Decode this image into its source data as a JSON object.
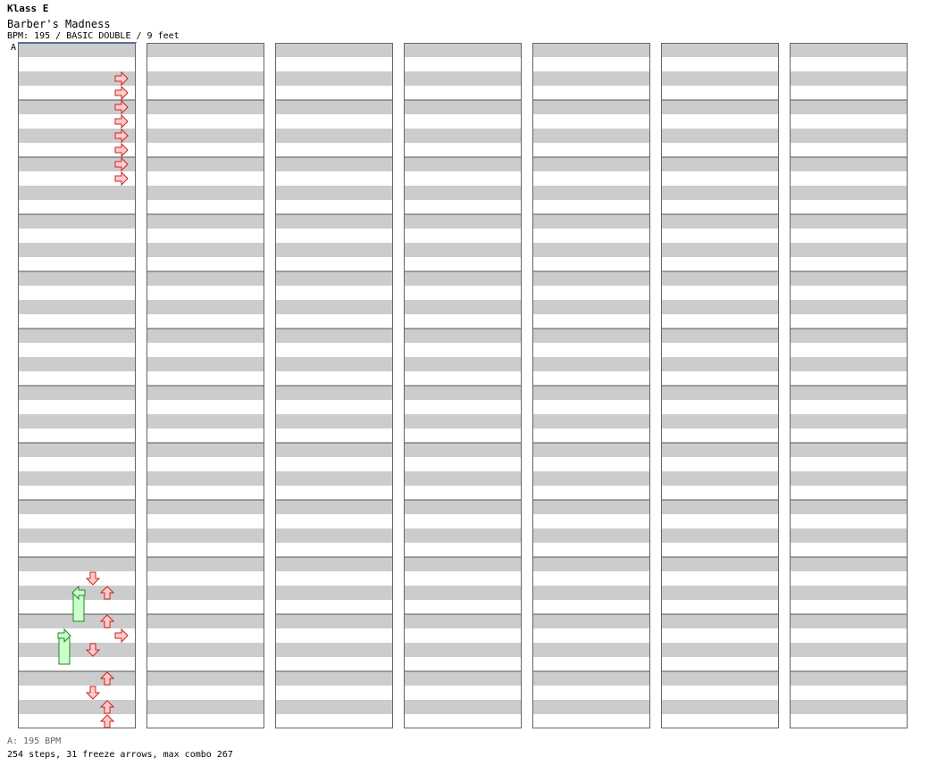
{
  "header": {
    "title": "Klass E",
    "song": "Barber's Madness",
    "subtitle": "BPM: 195 / BASIC DOUBLE / 9 feet",
    "bpm_marker": "A"
  },
  "footer": {
    "bpm_legend": "A: 195 BPM",
    "stats": "254 steps, 31 freeze arrows, max combo 267"
  },
  "colors": {
    "arrow_fill": "#ffcccc",
    "arrow_stroke": "#cc2222",
    "freeze_fill": "#ccffcc",
    "freeze_stroke": "#228822",
    "stripe_gray": "#cccccc",
    "bpm_line": "#4a78c8"
  },
  "chart_data": {
    "type": "step-chart",
    "columns": 7,
    "measures_per_column": 12,
    "lanes": 8,
    "notes": [
      [
        1,
        0.625,
        7
      ],
      [
        1,
        0.875,
        7
      ],
      [
        1,
        1.125,
        7
      ],
      [
        1,
        1.375,
        7
      ],
      [
        1,
        1.625,
        7
      ],
      [
        1,
        1.875,
        7
      ],
      [
        1,
        2.125,
        7
      ],
      [
        1,
        2.375,
        7
      ],
      [
        1,
        9.375,
        5
      ],
      [
        1,
        9.625,
        6
      ],
      [
        1,
        10.125,
        6
      ],
      [
        1,
        10.375,
        7
      ],
      [
        1,
        10.625,
        5
      ],
      [
        1,
        11.125,
        6
      ],
      [
        1,
        11.375,
        5
      ],
      [
        1,
        11.625,
        6
      ],
      [
        1,
        11.875,
        6
      ]
    ],
    "freezes": [
      [
        1,
        9.625,
        10.125,
        4
      ],
      [
        1,
        10.375,
        10.875,
        3
      ]
    ]
  }
}
